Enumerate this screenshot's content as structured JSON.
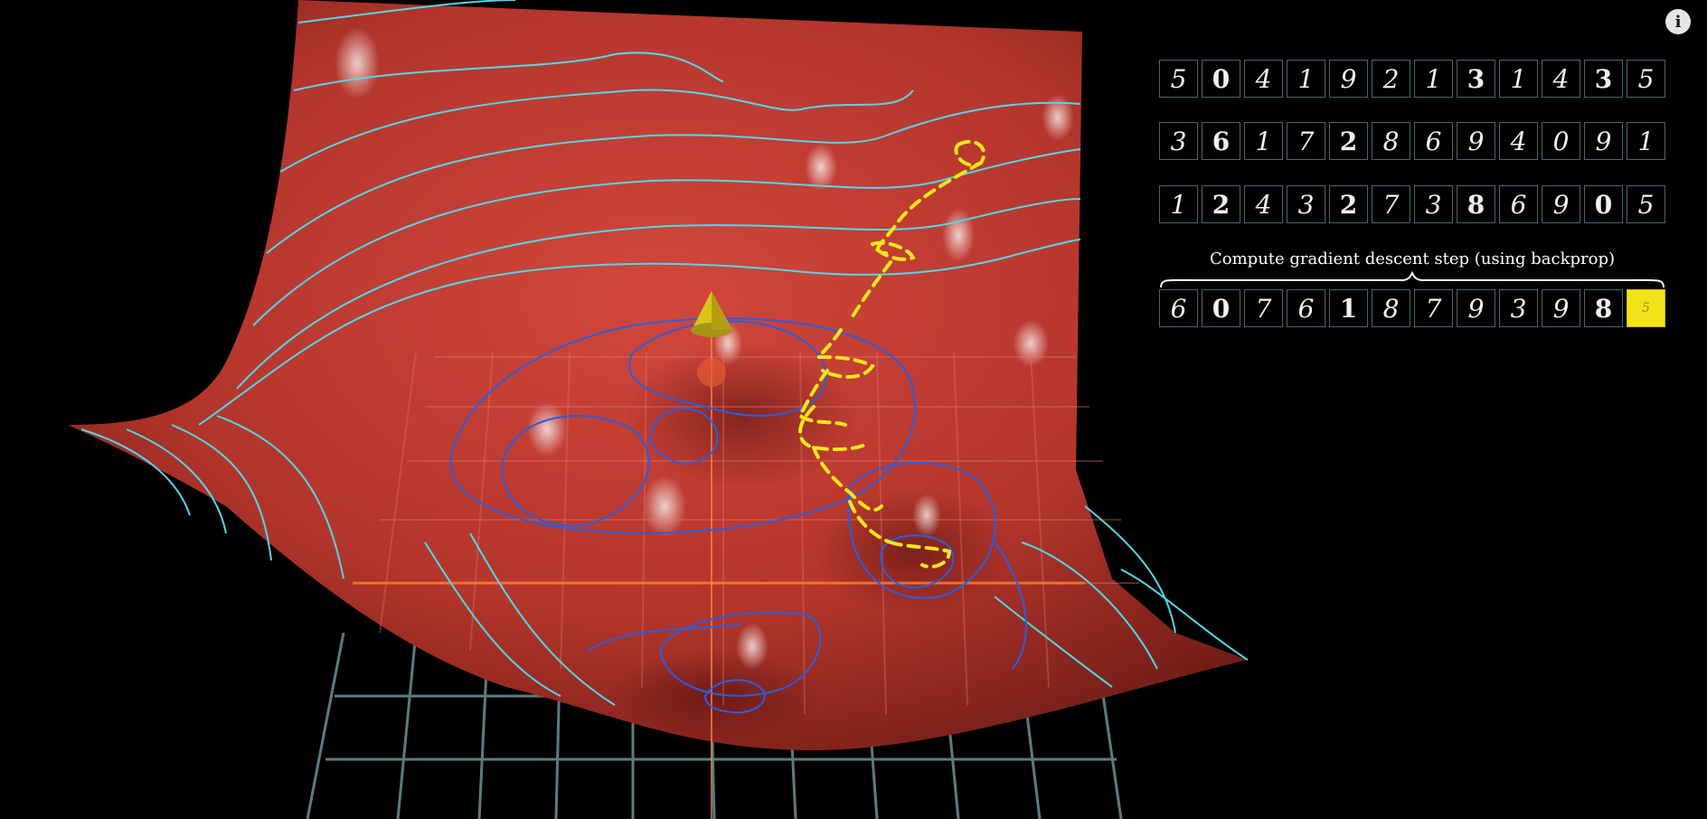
{
  "info_button": {
    "label": "i"
  },
  "training_batches": [
    {
      "digits": [
        "5",
        "0",
        "4",
        "1",
        "9",
        "2",
        "1",
        "3",
        "1",
        "4",
        "3",
        "5"
      ]
    },
    {
      "digits": [
        "3",
        "6",
        "1",
        "7",
        "2",
        "8",
        "6",
        "9",
        "4",
        "0",
        "9",
        "1"
      ]
    },
    {
      "digits": [
        "1",
        "2",
        "4",
        "3",
        "2",
        "7",
        "3",
        "8",
        "6",
        "9",
        "0",
        "5"
      ]
    }
  ],
  "current_batch": {
    "caption": "Compute gradient descent step (using backprop)",
    "digits": [
      "6",
      "0",
      "7",
      "6",
      "1",
      "8",
      "7",
      "9",
      "3",
      "9",
      "8",
      "5"
    ],
    "active_index": 11
  },
  "colors": {
    "surface": "#c0392f",
    "surface_shadow": "#6e1a15",
    "contour_light": "#4fd8e8",
    "contour_dark": "#2a3fd0",
    "descent_path": "#f5e61b",
    "cone": "#d9c41a",
    "grid_floor": "#5d7b80"
  },
  "icons": [
    "info-icon",
    "cone-marker-icon"
  ]
}
